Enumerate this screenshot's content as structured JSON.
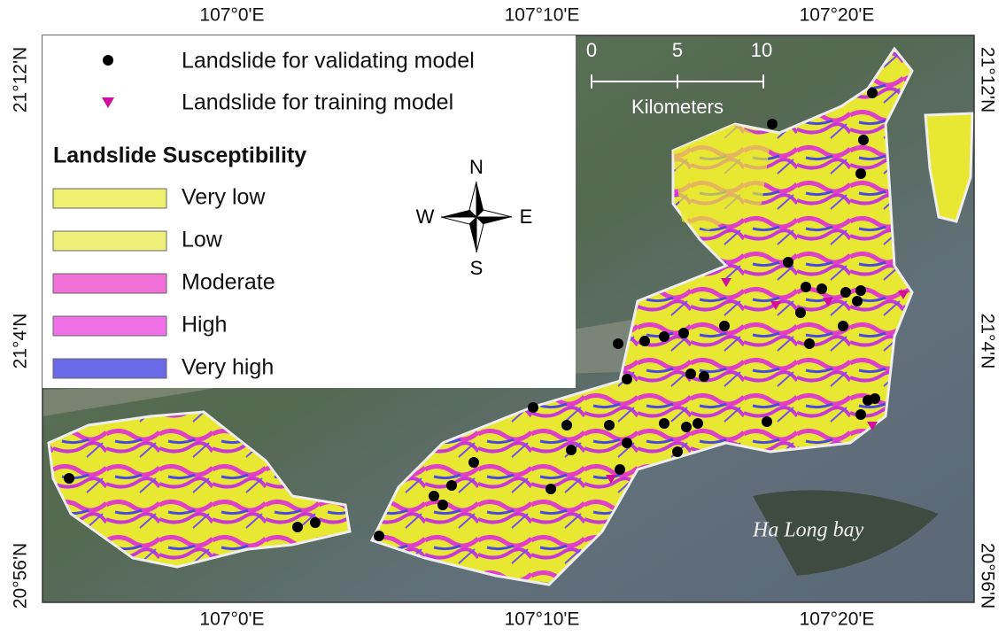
{
  "coordinates": {
    "top": [
      "107°0'E",
      "107°10'E",
      "107°20'E"
    ],
    "bottom": [
      "107°0'E",
      "107°10'E",
      "107°20'E"
    ],
    "left": [
      "21°12'N",
      "21°4'N",
      "20°56'N"
    ],
    "right": [
      "21°12'N",
      "21°4'N",
      "20°56'N"
    ]
  },
  "legend": {
    "points": [
      "Landslide for validating model",
      "Landslide for training model"
    ],
    "title": "Landslide Susceptibility",
    "classes": [
      "Very low",
      "Low",
      "Moderate",
      "High",
      "Very high"
    ]
  },
  "scale_bar": {
    "ticks": [
      0,
      5,
      10
    ],
    "unit": "Kilometers"
  },
  "north_arrow": {
    "north": "N",
    "south": "S",
    "east": "E",
    "west": "W"
  },
  "annotation": "Ha Long bay"
}
